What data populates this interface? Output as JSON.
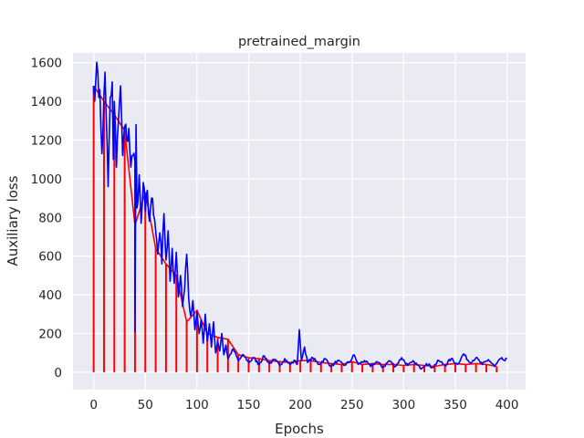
{
  "chart_data": {
    "type": "line",
    "title": "pretrained_margin",
    "xlabel": "Epochs",
    "ylabel": "Auxiliary loss",
    "xlim": [
      -20,
      418
    ],
    "ylim": [
      -90,
      1650
    ],
    "xticks": [
      0,
      50,
      100,
      150,
      200,
      250,
      300,
      350,
      400
    ],
    "yticks": [
      0,
      200,
      400,
      600,
      800,
      1000,
      1200,
      1400,
      1600
    ],
    "grid": true,
    "background": "#eaeaf2",
    "series": [
      {
        "style": "line",
        "color": "#0000ff",
        "anchors": [
          [
            0,
            1480
          ],
          [
            2,
            1500
          ],
          [
            4,
            1550
          ],
          [
            5,
            1420
          ],
          [
            6,
            1460
          ],
          [
            8,
            1130
          ],
          [
            10,
            1440
          ],
          [
            11,
            1550
          ],
          [
            12,
            1350
          ],
          [
            14,
            960
          ],
          [
            16,
            1420
          ],
          [
            18,
            1500
          ],
          [
            19,
            1100
          ],
          [
            20,
            1400
          ],
          [
            22,
            1060
          ],
          [
            24,
            1300
          ],
          [
            26,
            1480
          ],
          [
            28,
            1120
          ],
          [
            30,
            1270
          ],
          [
            32,
            1200
          ],
          [
            34,
            1260
          ],
          [
            36,
            1060
          ],
          [
            38,
            1120
          ],
          [
            40,
            1090
          ],
          [
            40,
            210
          ],
          [
            41,
            1280
          ],
          [
            42,
            850
          ],
          [
            44,
            1020
          ],
          [
            46,
            770
          ],
          [
            48,
            980
          ],
          [
            50,
            830
          ],
          [
            52,
            940
          ],
          [
            54,
            780
          ],
          [
            56,
            900
          ],
          [
            58,
            810
          ],
          [
            60,
            730
          ],
          [
            62,
            610
          ],
          [
            64,
            720
          ],
          [
            66,
            560
          ],
          [
            68,
            820
          ],
          [
            70,
            580
          ],
          [
            72,
            730
          ],
          [
            74,
            470
          ],
          [
            76,
            640
          ],
          [
            78,
            460
          ],
          [
            80,
            620
          ],
          [
            82,
            390
          ],
          [
            84,
            500
          ],
          [
            86,
            340
          ],
          [
            88,
            430
          ],
          [
            90,
            610
          ],
          [
            92,
            380
          ],
          [
            94,
            290
          ],
          [
            96,
            370
          ],
          [
            98,
            220
          ],
          [
            100,
            310
          ],
          [
            102,
            200
          ],
          [
            104,
            270
          ],
          [
            106,
            150
          ],
          [
            108,
            300
          ],
          [
            110,
            160
          ],
          [
            112,
            250
          ],
          [
            114,
            130
          ],
          [
            116,
            260
          ],
          [
            118,
            100
          ],
          [
            120,
            160
          ],
          [
            122,
            110
          ],
          [
            124,
            200
          ],
          [
            126,
            90
          ],
          [
            128,
            140
          ],
          [
            130,
            70
          ],
          [
            135,
            120
          ],
          [
            140,
            60
          ],
          [
            145,
            90
          ],
          [
            150,
            50
          ],
          [
            155,
            75
          ],
          [
            160,
            40
          ],
          [
            165,
            85
          ],
          [
            170,
            45
          ],
          [
            175,
            65
          ],
          [
            180,
            35
          ],
          [
            185,
            70
          ],
          [
            190,
            40
          ],
          [
            195,
            60
          ],
          [
            197,
            40
          ],
          [
            199,
            220
          ],
          [
            201,
            60
          ],
          [
            204,
            130
          ],
          [
            207,
            50
          ],
          [
            212,
            75
          ],
          [
            218,
            40
          ],
          [
            224,
            70
          ],
          [
            230,
            30
          ],
          [
            236,
            60
          ],
          [
            242,
            35
          ],
          [
            248,
            55
          ],
          [
            252,
            90
          ],
          [
            256,
            40
          ],
          [
            262,
            60
          ],
          [
            268,
            30
          ],
          [
            274,
            55
          ],
          [
            280,
            25
          ],
          [
            286,
            60
          ],
          [
            292,
            30
          ],
          [
            298,
            75
          ],
          [
            304,
            35
          ],
          [
            310,
            55
          ],
          [
            316,
            20
          ],
          [
            322,
            45
          ],
          [
            328,
            25
          ],
          [
            334,
            60
          ],
          [
            340,
            35
          ],
          [
            346,
            70
          ],
          [
            352,
            40
          ],
          [
            358,
            95
          ],
          [
            364,
            50
          ],
          [
            370,
            75
          ],
          [
            376,
            40
          ],
          [
            382,
            65
          ],
          [
            388,
            30
          ],
          [
            394,
            70
          ],
          [
            398,
            60
          ],
          [
            400,
            70
          ]
        ]
      },
      {
        "style": "stem",
        "color": "#ff0000",
        "x": [
          0,
          10,
          20,
          30,
          40,
          50,
          60,
          70,
          80,
          90,
          100,
          110,
          120,
          130,
          140,
          150,
          160,
          170,
          180,
          190,
          200,
          210,
          220,
          230,
          240,
          250,
          260,
          270,
          280,
          290,
          300,
          310,
          320,
          330,
          340,
          350,
          360,
          370,
          380,
          390
        ],
        "values": [
          1480,
          1400,
          1330,
          1250,
          760,
          930,
          640,
          560,
          500,
          260,
          320,
          200,
          180,
          170,
          90,
          75,
          70,
          60,
          55,
          50,
          60,
          60,
          50,
          45,
          40,
          55,
          40,
          45,
          40,
          40,
          35,
          40,
          35,
          30,
          40,
          45,
          40,
          45,
          40,
          30
        ]
      }
    ]
  }
}
